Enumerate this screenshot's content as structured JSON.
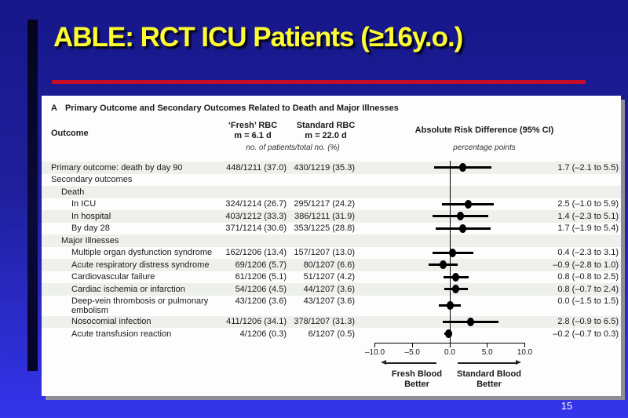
{
  "slide": {
    "title": "ABLE: RCT ICU Patients (≥16y.o.)",
    "page_number": "15",
    "colors": {
      "background_top": "#17178a",
      "background_bottom": "#3434ec",
      "title_yellow": "#fdfd32",
      "red_divider": "#c60d28",
      "left_accent_bar": "#06062c",
      "row_stripe": "#eef0ec"
    }
  },
  "figure": {
    "panel_label": "A",
    "panel_title": "Primary Outcome and Secondary Outcomes Related to Death and Major Illnesses",
    "headers": {
      "outcome": "Outcome",
      "fresh_line1": "‘Fresh’ RBC",
      "fresh_line2": "m = 6.1 d",
      "standard_line1": "Standard RBC",
      "standard_line2": "m = 22.0 d",
      "values_note": "no. of patients/total no. (%)",
      "ard": "Absolute Risk Difference (95% CI)",
      "ard_note": "percentage points"
    },
    "rows": [
      {
        "label": "Primary outcome: death by day 90",
        "indent": 0,
        "fresh": "448/1211 (37.0)",
        "standard": "430/1219 (35.3)",
        "ard": "1.7 (–2.1 to 5.5)",
        "est": 1.7,
        "lo": -2.1,
        "hi": 5.5
      },
      {
        "label": "Secondary outcomes",
        "indent": 0
      },
      {
        "label": "Death",
        "indent": 1
      },
      {
        "label": "In ICU",
        "indent": 2,
        "fresh": "324/1214 (26.7)",
        "standard": "295/1217 (24.2)",
        "ard": "2.5 (–1.0 to 5.9)",
        "est": 2.5,
        "lo": -1.0,
        "hi": 5.9
      },
      {
        "label": "In hospital",
        "indent": 2,
        "fresh": "403/1212 (33.3)",
        "standard": "386/1211 (31.9)",
        "ard": "1.4 (–2.3 to 5.1)",
        "est": 1.4,
        "lo": -2.3,
        "hi": 5.1
      },
      {
        "label": "By day 28",
        "indent": 2,
        "fresh": "371/1214 (30.6)",
        "standard": "353/1225 (28.8)",
        "ard": "1.7 (–1.9 to 5.4)",
        "est": 1.7,
        "lo": -1.9,
        "hi": 5.4
      },
      {
        "label": "Major Illnesses",
        "indent": 1
      },
      {
        "label": "Multiple organ dysfunction syndrome",
        "indent": 2,
        "fresh": "162/1206 (13.4)",
        "standard": "157/1207 (13.0)",
        "ard": "0.4 (–2.3 to 3.1)",
        "est": 0.4,
        "lo": -2.3,
        "hi": 3.1
      },
      {
        "label": "Acute respiratory distress syndrome",
        "indent": 2,
        "fresh": "69/1206 (5.7)",
        "standard": "80/1207 (6.6)",
        "ard": "–0.9 (–2.8 to 1.0)",
        "est": -0.9,
        "lo": -2.8,
        "hi": 1.0
      },
      {
        "label": "Cardiovascular failure",
        "indent": 2,
        "fresh": "61/1206 (5.1)",
        "standard": "51/1207 (4.2)",
        "ard": "0.8 (–0.8 to 2.5)",
        "est": 0.8,
        "lo": -0.8,
        "hi": 2.5
      },
      {
        "label": "Cardiac ischemia or infarction",
        "indent": 2,
        "fresh": "54/1206 (4.5)",
        "standard": "44/1207 (3.6)",
        "ard": "0.8 (–0.7 to 2.4)",
        "est": 0.8,
        "lo": -0.7,
        "hi": 2.4
      },
      {
        "label": "Deep-vein thrombosis or pulmonary embolism",
        "indent": 2,
        "two_line": true,
        "fresh": "43/1206 (3.6)",
        "standard": "43/1207 (3.6)",
        "ard": "0.0 (–1.5 to 1.5)",
        "est": 0.0,
        "lo": -1.5,
        "hi": 1.5
      },
      {
        "label": "Nosocomial infection",
        "indent": 2,
        "fresh": "411/1206 (34.1)",
        "standard": "378/1207 (31.3)",
        "ard": "2.8 (–0.9 to 6.5)",
        "est": 2.8,
        "lo": -0.9,
        "hi": 6.5
      },
      {
        "label": "Acute transfusion reaction",
        "indent": 2,
        "fresh": "4/1206 (0.3)",
        "standard": "6/1207 (0.5)",
        "ard": "–0.2 (–0.7 to 0.3)",
        "est": -0.2,
        "lo": -0.7,
        "hi": 0.3
      }
    ],
    "axis": {
      "ticks": [
        {
          "label": "–10.0",
          "value": -10
        },
        {
          "label": "–5.0",
          "value": -5
        },
        {
          "label": "0.0",
          "value": 0
        },
        {
          "label": "5.0",
          "value": 5
        },
        {
          "label": "10.0",
          "value": 10
        }
      ],
      "left_label_line1": "Fresh Blood",
      "left_label_line2": "Better",
      "right_label_line1": "Standard Blood",
      "right_label_line2": "Better"
    }
  },
  "chart_data": {
    "type": "scatter",
    "subtype": "forest-plot",
    "title": "Absolute Risk Difference (95% CI)",
    "xlabel": "percentage points",
    "xlim": [
      -10.5,
      10.5
    ],
    "x_ticks": [
      -10.0,
      -5.0,
      0.0,
      5.0,
      10.0
    ],
    "reference_line_x": 0.0,
    "direction_labels": {
      "left": "Fresh Blood Better",
      "right": "Standard Blood Better"
    },
    "points": [
      {
        "outcome": "Primary outcome: death by day 90",
        "fresh_rbc": "448/1211 (37.0)",
        "standard_rbc": "430/1219 (35.3)",
        "estimate": 1.7,
        "ci": [
          -2.1,
          5.5
        ]
      },
      {
        "outcome": "Death in ICU",
        "fresh_rbc": "324/1214 (26.7)",
        "standard_rbc": "295/1217 (24.2)",
        "estimate": 2.5,
        "ci": [
          -1.0,
          5.9
        ]
      },
      {
        "outcome": "Death in hospital",
        "fresh_rbc": "403/1212 (33.3)",
        "standard_rbc": "386/1211 (31.9)",
        "estimate": 1.4,
        "ci": [
          -2.3,
          5.1
        ]
      },
      {
        "outcome": "Death by day 28",
        "fresh_rbc": "371/1214 (30.6)",
        "standard_rbc": "353/1225 (28.8)",
        "estimate": 1.7,
        "ci": [
          -1.9,
          5.4
        ]
      },
      {
        "outcome": "Multiple organ dysfunction syndrome",
        "fresh_rbc": "162/1206 (13.4)",
        "standard_rbc": "157/1207 (13.0)",
        "estimate": 0.4,
        "ci": [
          -2.3,
          3.1
        ]
      },
      {
        "outcome": "Acute respiratory distress syndrome",
        "fresh_rbc": "69/1206 (5.7)",
        "standard_rbc": "80/1207 (6.6)",
        "estimate": -0.9,
        "ci": [
          -2.8,
          1.0
        ]
      },
      {
        "outcome": "Cardiovascular failure",
        "fresh_rbc": "61/1206 (5.1)",
        "standard_rbc": "51/1207 (4.2)",
        "estimate": 0.8,
        "ci": [
          -0.8,
          2.5
        ]
      },
      {
        "outcome": "Cardiac ischemia or infarction",
        "fresh_rbc": "54/1206 (4.5)",
        "standard_rbc": "44/1207 (3.6)",
        "estimate": 0.8,
        "ci": [
          -0.7,
          2.4
        ]
      },
      {
        "outcome": "Deep-vein thrombosis or pulmonary embolism",
        "fresh_rbc": "43/1206 (3.6)",
        "standard_rbc": "43/1207 (3.6)",
        "estimate": 0.0,
        "ci": [
          -1.5,
          1.5
        ]
      },
      {
        "outcome": "Nosocomial infection",
        "fresh_rbc": "411/1206 (34.1)",
        "standard_rbc": "378/1207 (31.3)",
        "estimate": 2.8,
        "ci": [
          -0.9,
          6.5
        ]
      },
      {
        "outcome": "Acute transfusion reaction",
        "fresh_rbc": "4/1206 (0.3)",
        "standard_rbc": "6/1207 (0.5)",
        "estimate": -0.2,
        "ci": [
          -0.7,
          0.3
        ]
      }
    ]
  }
}
